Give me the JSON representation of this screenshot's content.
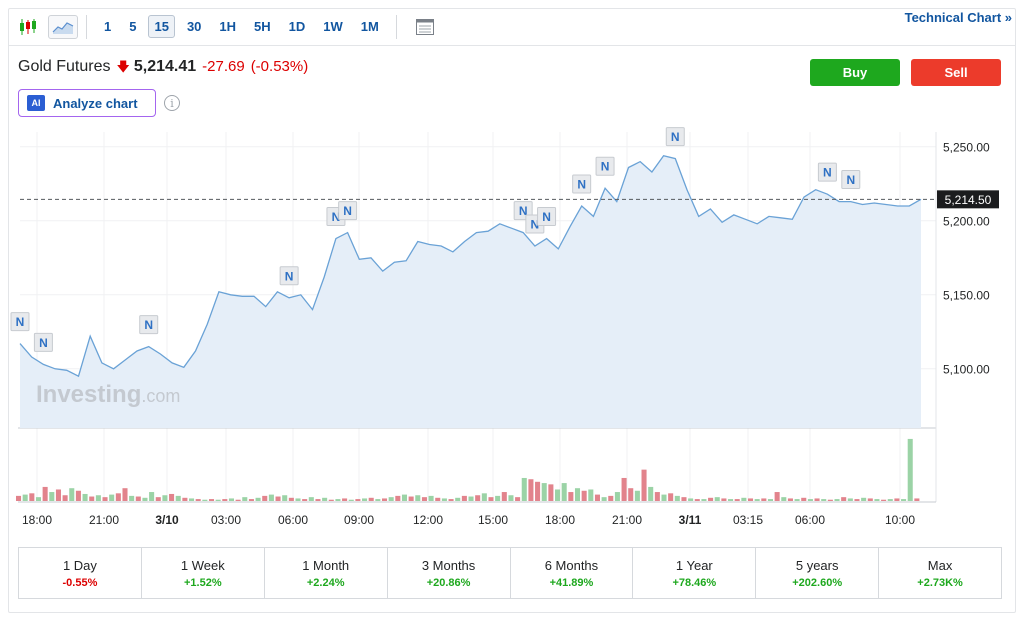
{
  "toolbar": {
    "timeframes": [
      "1",
      "5",
      "15",
      "30",
      "1H",
      "5H",
      "1D",
      "1W",
      "1M"
    ],
    "active_timeframe": "15",
    "technical_link": "Technical Chart »"
  },
  "header": {
    "instrument": "Gold Futures",
    "price": "5,214.41",
    "change": "-27.69",
    "change_pct": "(-0.53%)",
    "buy_label": "Buy",
    "sell_label": "Sell",
    "analyze_label": "Analyze chart",
    "ai_badge": "AI",
    "info_glyph": "i"
  },
  "colors": {
    "line": "#6aa2d6",
    "area": "#e5eef8",
    "up_volume": "#9bd3a6",
    "down_volume": "#e2838c",
    "negative": "#dc0000",
    "positive": "#1ea81e"
  },
  "chart_data": {
    "type": "area",
    "x_ticks": [
      "18:00",
      "21:00",
      "3/10",
      "03:00",
      "06:00",
      "09:00",
      "12:00",
      "15:00",
      "18:00",
      "21:00",
      "3/11",
      "03:15",
      "06:00",
      "10:00"
    ],
    "y_ticks": [
      "5,250.00",
      "5,200.00",
      "5,150.00",
      "5,100.00"
    ],
    "ylim": [
      5060,
      5260
    ],
    "last_price_label": "5,214.50",
    "last_price": 5214.5,
    "watermark": "Investing.com",
    "values": [
      5117,
      5108,
      5103,
      5100,
      5099,
      5095,
      5122,
      5104,
      5100,
      5106,
      5112,
      5115,
      5110,
      5104,
      5101,
      5112,
      5130,
      5152,
      5150,
      5149,
      5149,
      5142,
      5152,
      5148,
      5150,
      5140,
      5162,
      5188,
      5192,
      5174,
      5175,
      5166,
      5172,
      5173,
      5186,
      5184,
      5183,
      5179,
      5186,
      5192,
      5193,
      5198,
      5195,
      5192,
      5183,
      5188,
      5181,
      5196,
      5210,
      5203,
      5222,
      5213,
      5236,
      5240,
      5233,
      5244,
      5242,
      5221,
      5203,
      5208,
      5199,
      5204,
      5201,
      5198,
      5203,
      5202,
      5201,
      5216,
      5221,
      5218,
      5213,
      5213,
      5211,
      5212,
      5211,
      5210,
      5210,
      5214.5
    ],
    "news_markers": [
      {
        "label": "N",
        "x": 0,
        "y": 5117
      },
      {
        "label": "N",
        "x": 2,
        "y": 5103
      },
      {
        "label": "N",
        "x": 11,
        "y": 5115
      },
      {
        "label": "N",
        "x": 23,
        "y": 5148
      },
      {
        "label": "N",
        "x": 27,
        "y": 5188
      },
      {
        "label": "N",
        "x": 28,
        "y": 5192
      },
      {
        "label": "N",
        "x": 43,
        "y": 5192
      },
      {
        "label": "N",
        "x": 44,
        "y": 5183
      },
      {
        "label": "N",
        "x": 45,
        "y": 5188
      },
      {
        "label": "N",
        "x": 48,
        "y": 5210
      },
      {
        "label": "N",
        "x": 50,
        "y": 5222
      },
      {
        "label": "N",
        "x": 56,
        "y": 5242
      },
      {
        "label": "N",
        "x": 69,
        "y": 5218
      },
      {
        "label": "N",
        "x": 71,
        "y": 5213
      }
    ],
    "volume_ylim": [
      0,
      100
    ],
    "volume": [
      {
        "v": 8,
        "up": false
      },
      {
        "v": 10,
        "up": true
      },
      {
        "v": 12,
        "up": false
      },
      {
        "v": 6,
        "up": true
      },
      {
        "v": 22,
        "up": false
      },
      {
        "v": 14,
        "up": true
      },
      {
        "v": 18,
        "up": false
      },
      {
        "v": 9,
        "up": false
      },
      {
        "v": 20,
        "up": true
      },
      {
        "v": 16,
        "up": false
      },
      {
        "v": 11,
        "up": true
      },
      {
        "v": 7,
        "up": false
      },
      {
        "v": 9,
        "up": true
      },
      {
        "v": 6,
        "up": false
      },
      {
        "v": 10,
        "up": true
      },
      {
        "v": 12,
        "up": false
      },
      {
        "v": 20,
        "up": false
      },
      {
        "v": 8,
        "up": true
      },
      {
        "v": 7,
        "up": false
      },
      {
        "v": 5,
        "up": true
      },
      {
        "v": 14,
        "up": true
      },
      {
        "v": 6,
        "up": false
      },
      {
        "v": 9,
        "up": true
      },
      {
        "v": 11,
        "up": false
      },
      {
        "v": 8,
        "up": true
      },
      {
        "v": 5,
        "up": false
      },
      {
        "v": 4,
        "up": true
      },
      {
        "v": 3,
        "up": false
      },
      {
        "v": 2,
        "up": true
      },
      {
        "v": 3,
        "up": false
      },
      {
        "v": 2,
        "up": true
      },
      {
        "v": 3,
        "up": false
      },
      {
        "v": 4,
        "up": true
      },
      {
        "v": 2,
        "up": false
      },
      {
        "v": 6,
        "up": true
      },
      {
        "v": 3,
        "up": false
      },
      {
        "v": 5,
        "up": true
      },
      {
        "v": 8,
        "up": false
      },
      {
        "v": 10,
        "up": true
      },
      {
        "v": 7,
        "up": false
      },
      {
        "v": 9,
        "up": true
      },
      {
        "v": 5,
        "up": false
      },
      {
        "v": 4,
        "up": true
      },
      {
        "v": 3,
        "up": false
      },
      {
        "v": 6,
        "up": true
      },
      {
        "v": 3,
        "up": false
      },
      {
        "v": 5,
        "up": true
      },
      {
        "v": 2,
        "up": false
      },
      {
        "v": 3,
        "up": true
      },
      {
        "v": 4,
        "up": false
      },
      {
        "v": 2,
        "up": true
      },
      {
        "v": 3,
        "up": false
      },
      {
        "v": 4,
        "up": true
      },
      {
        "v": 5,
        "up": false
      },
      {
        "v": 3,
        "up": true
      },
      {
        "v": 4,
        "up": false
      },
      {
        "v": 6,
        "up": true
      },
      {
        "v": 8,
        "up": false
      },
      {
        "v": 10,
        "up": true
      },
      {
        "v": 7,
        "up": false
      },
      {
        "v": 9,
        "up": true
      },
      {
        "v": 6,
        "up": false
      },
      {
        "v": 8,
        "up": true
      },
      {
        "v": 5,
        "up": false
      },
      {
        "v": 4,
        "up": true
      },
      {
        "v": 3,
        "up": false
      },
      {
        "v": 5,
        "up": true
      },
      {
        "v": 8,
        "up": false
      },
      {
        "v": 7,
        "up": true
      },
      {
        "v": 9,
        "up": false
      },
      {
        "v": 12,
        "up": true
      },
      {
        "v": 6,
        "up": false
      },
      {
        "v": 8,
        "up": true
      },
      {
        "v": 14,
        "up": false
      },
      {
        "v": 9,
        "up": true
      },
      {
        "v": 6,
        "up": false
      },
      {
        "v": 36,
        "up": true
      },
      {
        "v": 34,
        "up": false
      },
      {
        "v": 30,
        "up": false
      },
      {
        "v": 28,
        "up": true
      },
      {
        "v": 26,
        "up": false
      },
      {
        "v": 18,
        "up": true
      },
      {
        "v": 28,
        "up": true
      },
      {
        "v": 14,
        "up": false
      },
      {
        "v": 20,
        "up": true
      },
      {
        "v": 16,
        "up": false
      },
      {
        "v": 18,
        "up": true
      },
      {
        "v": 10,
        "up": false
      },
      {
        "v": 6,
        "up": true
      },
      {
        "v": 8,
        "up": false
      },
      {
        "v": 14,
        "up": true
      },
      {
        "v": 36,
        "up": false
      },
      {
        "v": 20,
        "up": false
      },
      {
        "v": 16,
        "up": true
      },
      {
        "v": 49,
        "up": false
      },
      {
        "v": 22,
        "up": true
      },
      {
        "v": 14,
        "up": false
      },
      {
        "v": 10,
        "up": true
      },
      {
        "v": 12,
        "up": false
      },
      {
        "v": 8,
        "up": true
      },
      {
        "v": 6,
        "up": false
      },
      {
        "v": 4,
        "up": true
      },
      {
        "v": 3,
        "up": false
      },
      {
        "v": 3,
        "up": true
      },
      {
        "v": 5,
        "up": false
      },
      {
        "v": 6,
        "up": true
      },
      {
        "v": 4,
        "up": false
      },
      {
        "v": 3,
        "up": true
      },
      {
        "v": 3,
        "up": false
      },
      {
        "v": 5,
        "up": true
      },
      {
        "v": 4,
        "up": false
      },
      {
        "v": 3,
        "up": true
      },
      {
        "v": 4,
        "up": false
      },
      {
        "v": 3,
        "up": true
      },
      {
        "v": 14,
        "up": false
      },
      {
        "v": 6,
        "up": true
      },
      {
        "v": 4,
        "up": false
      },
      {
        "v": 3,
        "up": true
      },
      {
        "v": 5,
        "up": false
      },
      {
        "v": 3,
        "up": true
      },
      {
        "v": 4,
        "up": false
      },
      {
        "v": 3,
        "up": true
      },
      {
        "v": 2,
        "up": false
      },
      {
        "v": 3,
        "up": true
      },
      {
        "v": 6,
        "up": false
      },
      {
        "v": 4,
        "up": true
      },
      {
        "v": 3,
        "up": false
      },
      {
        "v": 5,
        "up": true
      },
      {
        "v": 4,
        "up": false
      },
      {
        "v": 3,
        "up": true
      },
      {
        "v": 2,
        "up": false
      },
      {
        "v": 3,
        "up": true
      },
      {
        "v": 4,
        "up": false
      },
      {
        "v": 3,
        "up": true
      },
      {
        "v": 97,
        "up": true
      },
      {
        "v": 4,
        "up": false
      }
    ]
  },
  "periods": [
    {
      "label": "1 Day",
      "value": "-0.55%",
      "positive": false
    },
    {
      "label": "1 Week",
      "value": "+1.52%",
      "positive": true
    },
    {
      "label": "1 Month",
      "value": "+2.24%",
      "positive": true
    },
    {
      "label": "3 Months",
      "value": "+20.86%",
      "positive": true
    },
    {
      "label": "6 Months",
      "value": "+41.89%",
      "positive": true
    },
    {
      "label": "1 Year",
      "value": "+78.46%",
      "positive": true
    },
    {
      "label": "5 years",
      "value": "+202.60%",
      "positive": true
    },
    {
      "label": "Max",
      "value": "+2.73K%",
      "positive": true
    }
  ]
}
